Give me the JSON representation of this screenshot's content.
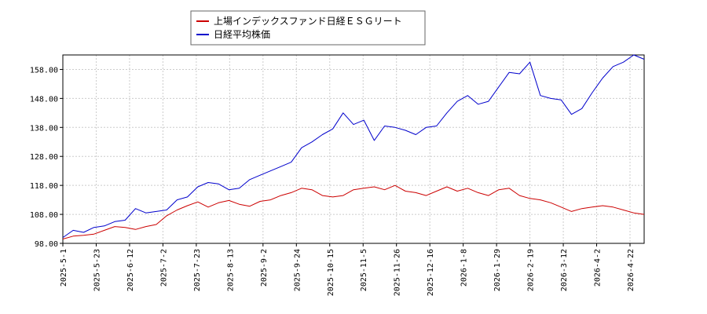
{
  "chart_data": {
    "type": "line",
    "title": "",
    "xlabel": "",
    "ylabel": "",
    "ylim": [
      98,
      163
    ],
    "y_ticks": [
      "98.00",
      "108.00",
      "118.00",
      "128.00",
      "138.00",
      "148.00",
      "158.00"
    ],
    "y_tick_values": [
      98,
      108,
      118,
      128,
      138,
      148,
      158
    ],
    "x_ticks": [
      "2025-5-1",
      "2025-5-23",
      "2025-6-12",
      "2025-7-2",
      "2025-7-23",
      "2025-8-13",
      "2025-9-2",
      "2025-9-24",
      "2025-10-15",
      "2025-11-5",
      "2025-11-26",
      "2025-12-16",
      "2026-1-8",
      "2026-1-29",
      "2026-2-19",
      "2026-3-12",
      "2026-4-2",
      "2026-4-22"
    ],
    "grid": true,
    "legend_position": "top-center",
    "series": [
      {
        "name": "上場インデックスファンド日経ＥＳＧリート",
        "color": "#cc0000",
        "values": [
          99.5,
          100.5,
          100.8,
          101.2,
          102.5,
          103.8,
          103.5,
          102.8,
          103.8,
          104.5,
          107.5,
          109.5,
          111.0,
          112.3,
          110.5,
          112.0,
          112.8,
          111.5,
          110.8,
          112.5,
          113.0,
          114.5,
          115.5,
          117.0,
          116.5,
          114.5,
          114.0,
          114.5,
          116.5,
          117.0,
          117.5,
          116.5,
          118.0,
          116.0,
          115.5,
          114.5,
          116.0,
          117.5,
          116.0,
          117.0,
          115.5,
          114.5,
          116.5,
          117.0,
          114.5,
          113.5,
          113.0,
          112.0,
          110.5,
          109.0,
          110.0,
          110.5,
          111.0,
          110.5,
          109.5,
          108.5,
          108.0
        ]
      },
      {
        "name": "日経平均株価",
        "color": "#0000cc",
        "values": [
          100.0,
          102.5,
          101.8,
          103.5,
          104.0,
          105.5,
          106.0,
          110.0,
          108.5,
          109.0,
          109.5,
          113.0,
          114.0,
          117.5,
          119.0,
          118.5,
          116.5,
          117.0,
          120.0,
          121.5,
          123.0,
          124.5,
          126.0,
          131.0,
          133.0,
          135.5,
          137.5,
          143.0,
          139.0,
          140.5,
          133.5,
          138.5,
          138.0,
          137.0,
          135.5,
          138.0,
          138.5,
          143.0,
          147.0,
          149.0,
          146.0,
          147.0,
          152.0,
          157.0,
          156.5,
          160.5,
          149.0,
          148.0,
          147.5,
          142.5,
          144.5,
          150.0,
          155.0,
          159.0,
          160.5,
          163.0,
          161.5
        ]
      }
    ]
  }
}
